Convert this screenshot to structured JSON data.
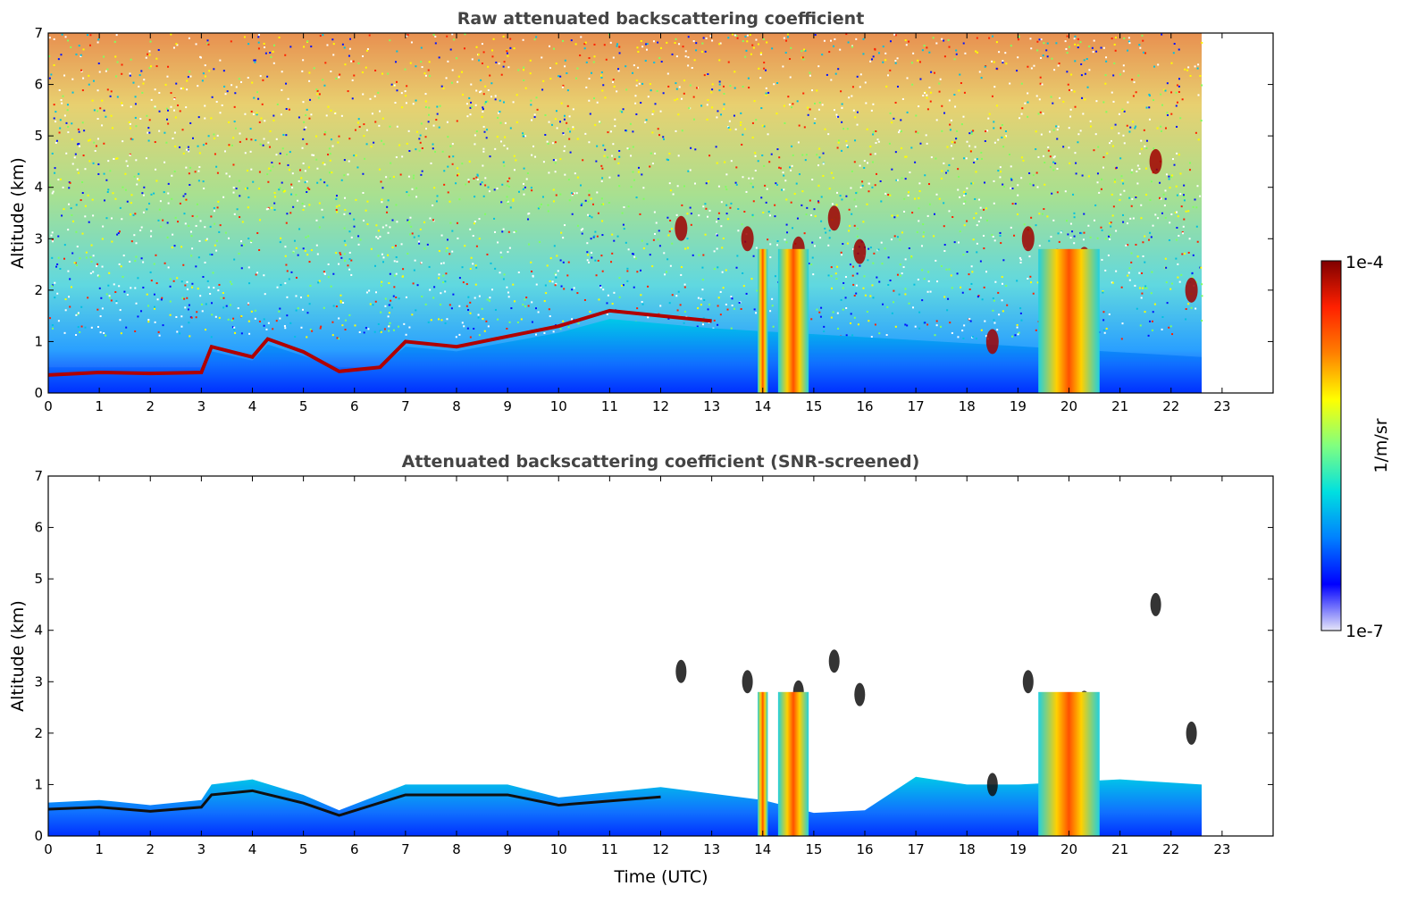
{
  "chart_data": [
    {
      "type": "heatmap",
      "title": "Raw attenuated backscattering coefficient",
      "xlabel": "",
      "ylabel": "Altitude (km)",
      "xlim": [
        0,
        24
      ],
      "ylim": [
        0,
        7
      ],
      "x_ticks": [
        "0",
        "1",
        "2",
        "3",
        "4",
        "5",
        "6",
        "7",
        "8",
        "9",
        "10",
        "11",
        "12",
        "13",
        "14",
        "15",
        "16",
        "17",
        "18",
        "19",
        "20",
        "21",
        "22",
        "23"
      ],
      "y_ticks": [
        "0",
        "1",
        "2",
        "3",
        "4",
        "5",
        "6",
        "7"
      ],
      "data_end_time": 22.6,
      "boundary_layer_top_km": [
        {
          "x": 0,
          "y": 0.35
        },
        {
          "x": 1,
          "y": 0.4
        },
        {
          "x": 2,
          "y": 0.38
        },
        {
          "x": 3,
          "y": 0.4
        },
        {
          "x": 3.2,
          "y": 0.9
        },
        {
          "x": 4,
          "y": 0.7
        },
        {
          "x": 4.3,
          "y": 1.05
        },
        {
          "x": 5,
          "y": 0.8
        },
        {
          "x": 5.7,
          "y": 0.42
        },
        {
          "x": 6.5,
          "y": 0.5
        },
        {
          "x": 7,
          "y": 1.0
        },
        {
          "x": 8,
          "y": 0.9
        },
        {
          "x": 9,
          "y": 1.1
        },
        {
          "x": 10,
          "y": 1.3
        },
        {
          "x": 11,
          "y": 1.6
        },
        {
          "x": 12,
          "y": 1.5
        },
        {
          "x": 13,
          "y": 1.4
        }
      ],
      "cloud_features": [
        {
          "x": 12.4,
          "y": 3.2
        },
        {
          "x": 13.7,
          "y": 3.0
        },
        {
          "x": 14.7,
          "y": 2.8
        },
        {
          "x": 15.4,
          "y": 3.4
        },
        {
          "x": 15.9,
          "y": 2.75
        },
        {
          "x": 18.5,
          "y": 1.0
        },
        {
          "x": 19.2,
          "y": 3.0
        },
        {
          "x": 19.8,
          "y": 0.6
        },
        {
          "x": 20.3,
          "y": 2.6
        },
        {
          "x": 21.7,
          "y": 4.5
        },
        {
          "x": 22.4,
          "y": 2.0
        }
      ],
      "precipitation_columns": [
        {
          "x_start": 13.9,
          "x_end": 14.1
        },
        {
          "x_start": 14.3,
          "x_end": 14.9
        },
        {
          "x_start": 19.4,
          "x_end": 20.6
        }
      ]
    },
    {
      "type": "heatmap",
      "title": "Attenuated backscattering coefficient (SNR-screened)",
      "xlabel": "Time (UTC)",
      "ylabel": "Altitude (km)",
      "xlim": [
        0,
        24
      ],
      "ylim": [
        0,
        7
      ],
      "x_ticks": [
        "0",
        "1",
        "2",
        "3",
        "4",
        "5",
        "6",
        "7",
        "8",
        "9",
        "10",
        "11",
        "12",
        "13",
        "14",
        "15",
        "16",
        "17",
        "18",
        "19",
        "20",
        "21",
        "22",
        "23"
      ],
      "y_ticks": [
        "0",
        "1",
        "2",
        "3",
        "4",
        "5",
        "6",
        "7"
      ],
      "data_end_time": 22.6,
      "signal_top_km": [
        {
          "x": 0,
          "y": 0.65
        },
        {
          "x": 1,
          "y": 0.7
        },
        {
          "x": 2,
          "y": 0.6
        },
        {
          "x": 3,
          "y": 0.7
        },
        {
          "x": 3.2,
          "y": 1.0
        },
        {
          "x": 4,
          "y": 1.1
        },
        {
          "x": 5,
          "y": 0.8
        },
        {
          "x": 5.7,
          "y": 0.5
        },
        {
          "x": 7,
          "y": 1.0
        },
        {
          "x": 9,
          "y": 1.0
        },
        {
          "x": 10,
          "y": 0.75
        },
        {
          "x": 12,
          "y": 0.95
        },
        {
          "x": 14,
          "y": 0.7
        },
        {
          "x": 15,
          "y": 0.45
        },
        {
          "x": 16,
          "y": 0.5
        },
        {
          "x": 17,
          "y": 1.15
        },
        {
          "x": 18,
          "y": 1.0
        },
        {
          "x": 19,
          "y": 1.0
        },
        {
          "x": 21,
          "y": 1.1
        },
        {
          "x": 22.6,
          "y": 1.0
        }
      ]
    }
  ],
  "colorbar": {
    "label": "1/m/sr",
    "max_label": "1e-4",
    "min_label": "1e-7",
    "scale": "log",
    "range": [
      1e-07,
      0.0001
    ],
    "colors": [
      "#e6e6f8",
      "#0000ff",
      "#0080ff",
      "#00e0e0",
      "#80ff80",
      "#ffff00",
      "#ff8000",
      "#ff2000",
      "#7f0000"
    ]
  }
}
